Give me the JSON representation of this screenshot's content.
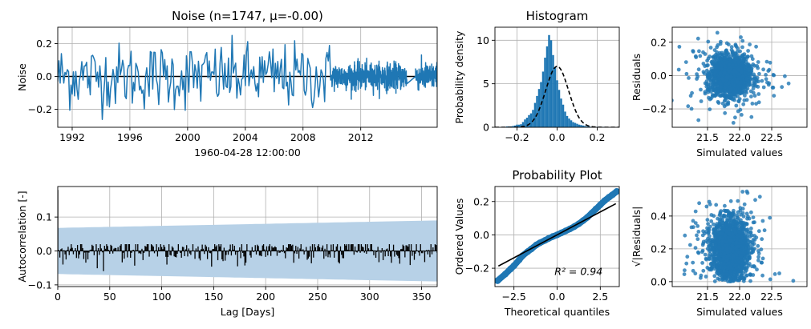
{
  "colors": {
    "series": "#1f77b4",
    "band": "#b7d1e7",
    "black": "#000000",
    "grid": "#b0b0b0"
  },
  "chart_data": [
    {
      "id": "noise",
      "type": "line",
      "title": "Noise (n=1747, μ=-0.00)",
      "xlabel": "1960-04-28 12:00:00",
      "ylabel": "Noise",
      "xlim": [
        1991.0,
        2017.3
      ],
      "ylim": [
        -0.31,
        0.3
      ],
      "xticks": [
        1992,
        1996,
        2000,
        2004,
        2008,
        2012
      ],
      "xticklabels": [
        "1992",
        "1996",
        "2000",
        "2004",
        "2008",
        "2012"
      ],
      "yticks": [
        0.2,
        0.0,
        -0.2
      ],
      "yticklabels": [
        "0.2",
        "0.0",
        "−0.2"
      ],
      "grid": true,
      "zero_line": 0.0,
      "n": 1747,
      "segments": [
        {
          "from": 1991.0,
          "to": 2010.0,
          "samples_per_year": 12,
          "std": 0.1
        },
        {
          "from": 2010.0,
          "to": 2015.2,
          "samples_per_year": 90,
          "std": 0.04
        },
        {
          "from": 2015.8,
          "to": 2017.3,
          "samples_per_year": 90,
          "std": 0.04
        }
      ]
    },
    {
      "id": "histogram",
      "type": "bar",
      "title": "Histogram",
      "xlabel": "",
      "ylabel": "Probability density",
      "xlim": [
        -0.31,
        0.31
      ],
      "ylim": [
        0,
        11.5
      ],
      "xticks": [
        -0.2,
        0.0,
        0.2
      ],
      "xticklabels": [
        "−0.2",
        "0.0",
        "0.2"
      ],
      "yticks": [
        0,
        5,
        10
      ],
      "yticklabels": [
        "0",
        "5",
        "10"
      ],
      "grid": true,
      "normal_curve": {
        "mean": 0.0,
        "std": 0.057
      },
      "bins": {
        "edges_from": -0.275,
        "width": 0.01,
        "values": [
          0.05,
          0.05,
          0.1,
          0.1,
          0.1,
          0.15,
          0.2,
          0.3,
          0.3,
          0.35,
          0.6,
          0.9,
          1.1,
          1.4,
          1.6,
          2.0,
          2.8,
          3.6,
          4.4,
          5.2,
          6.4,
          8.0,
          9.3,
          10.6,
          10.0,
          8.3,
          6.9,
          5.4,
          4.3,
          3.3,
          2.6,
          1.8,
          1.3,
          1.0,
          0.8,
          0.6,
          0.5,
          0.4,
          0.3,
          0.25,
          0.2,
          0.15,
          0.1,
          0.1,
          0.05,
          0.05,
          0.05,
          0.05,
          0.05,
          0.05,
          0.05,
          0.05
        ]
      }
    },
    {
      "id": "residuals-scatter",
      "type": "scatter",
      "title": "",
      "xlabel": "Simulated values",
      "ylabel": "Residuals",
      "xlim": [
        20.95,
        23.05
      ],
      "ylim": [
        -0.31,
        0.29
      ],
      "xticks": [
        21.5,
        22.0,
        22.5
      ],
      "xticklabels": [
        "21.5",
        "22.0",
        "22.5"
      ],
      "yticks": [
        0.2,
        0.0,
        -0.2
      ],
      "yticklabels": [
        "0.2",
        "0.0",
        "−0.2"
      ],
      "grid": true,
      "cloud": {
        "count": 1747,
        "x_mean": 21.85,
        "x_std": 0.25,
        "y_std": 0.07
      }
    },
    {
      "id": "autocorrelation",
      "type": "bar",
      "title": "",
      "xlabel": "Lag [Days]",
      "ylabel": "Autocorrelation [-]",
      "xlim": [
        0,
        365
      ],
      "ylim": [
        -0.105,
        0.19
      ],
      "xticks": [
        0,
        50,
        100,
        150,
        200,
        250,
        300,
        350
      ],
      "xticklabels": [
        "0",
        "50",
        "100",
        "150",
        "200",
        "250",
        "300",
        "350"
      ],
      "yticks": [
        0.1,
        0.0,
        -0.1
      ],
      "yticklabels": [
        "0.1",
        "0.0",
        "−0.1"
      ],
      "grid": true,
      "lag0_value": 0.18,
      "confidence_band": {
        "at_lag_0": 0.068,
        "at_lag_365": 0.09
      },
      "lag_values_std": 0.02
    },
    {
      "id": "probability-plot",
      "type": "scatter",
      "title": "Probability Plot",
      "xlabel": "Theoretical quantiles",
      "ylabel": "Ordered Values",
      "xlim": [
        -3.6,
        3.6
      ],
      "ylim": [
        -0.31,
        0.29
      ],
      "xticks": [
        -2.5,
        0.0,
        2.5
      ],
      "xticklabels": [
        "−2.5",
        "0.0",
        "2.5"
      ],
      "yticks": [
        0.2,
        0.0,
        -0.2
      ],
      "yticklabels": [
        "0.2",
        "0.0",
        "−0.2"
      ],
      "grid": true,
      "fit_line": {
        "slope": 0.055,
        "intercept": 0.0
      },
      "annotation": "R² = 0.94",
      "points": [
        [
          -3.45,
          -0.275
        ],
        [
          -3.0,
          -0.235
        ],
        [
          -2.7,
          -0.205
        ],
        [
          -2.5,
          -0.185
        ],
        [
          -2.2,
          -0.15
        ],
        [
          -2.0,
          -0.125
        ],
        [
          -1.7,
          -0.1
        ],
        [
          -1.5,
          -0.085
        ],
        [
          -1.2,
          -0.06
        ],
        [
          -1.0,
          -0.048
        ],
        [
          -0.7,
          -0.033
        ],
        [
          -0.5,
          -0.022
        ],
        [
          -0.25,
          -0.01
        ],
        [
          0.0,
          0.0
        ],
        [
          0.25,
          0.012
        ],
        [
          0.5,
          0.024
        ],
        [
          0.75,
          0.036
        ],
        [
          1.0,
          0.05
        ],
        [
          1.25,
          0.066
        ],
        [
          1.5,
          0.085
        ],
        [
          1.75,
          0.105
        ],
        [
          2.0,
          0.13
        ],
        [
          2.25,
          0.155
        ],
        [
          2.5,
          0.18
        ],
        [
          2.75,
          0.205
        ],
        [
          3.0,
          0.225
        ],
        [
          3.2,
          0.24
        ],
        [
          3.45,
          0.26
        ]
      ]
    },
    {
      "id": "sqrt-residuals-scatter",
      "type": "scatter",
      "title": "",
      "xlabel": "Simulated values",
      "ylabel": "√|Residuals|",
      "xlim": [
        20.95,
        23.05
      ],
      "ylim": [
        -0.03,
        0.58
      ],
      "xticks": [
        21.5,
        22.0,
        22.5
      ],
      "xticklabels": [
        "21.5",
        "22.0",
        "22.5"
      ],
      "yticks": [
        0.4,
        0.2,
        0.0
      ],
      "yticklabels": [
        "0.4",
        "0.2",
        "0.0"
      ],
      "grid": true,
      "cloud": {
        "count": 1747,
        "x_mean": 21.85,
        "x_std": 0.25,
        "y_mean": 0.2,
        "y_std": 0.09
      }
    }
  ]
}
